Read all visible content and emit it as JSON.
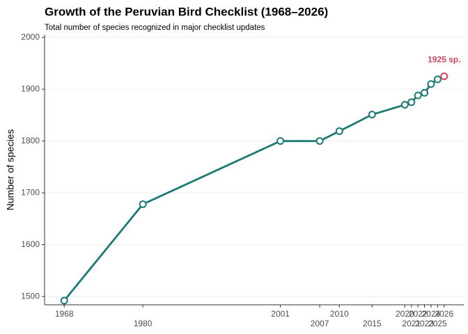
{
  "chart_data": {
    "type": "line",
    "title": "Growth of the Peruvian Bird Checklist (1968–2026)",
    "subtitle": "Total number of species recognized in major checklist updates",
    "y_label": "Number of species",
    "x": [
      1968,
      1980,
      2001,
      2007,
      2010,
      2015,
      2020,
      2021,
      2022,
      2023,
      2024,
      2025,
      2026
    ],
    "values": [
      1492,
      1678,
      1800,
      1800,
      1819,
      1851,
      1870,
      1875,
      1888,
      1893,
      1910,
      1919,
      1925
    ],
    "color": "#1b7a73",
    "highlight_color": "#d0455a",
    "annotation": "1925 sp.",
    "xlim": [
      1965,
      2029
    ],
    "ylim": [
      1484,
      2005
    ],
    "xticks": [
      1968,
      1980,
      2001,
      2007,
      2010,
      2015,
      2020,
      2021,
      2022,
      2023,
      2024,
      2025,
      2026
    ],
    "yticks": [
      1500,
      1600,
      1700,
      1800,
      1900,
      2000
    ],
    "grid": true
  }
}
